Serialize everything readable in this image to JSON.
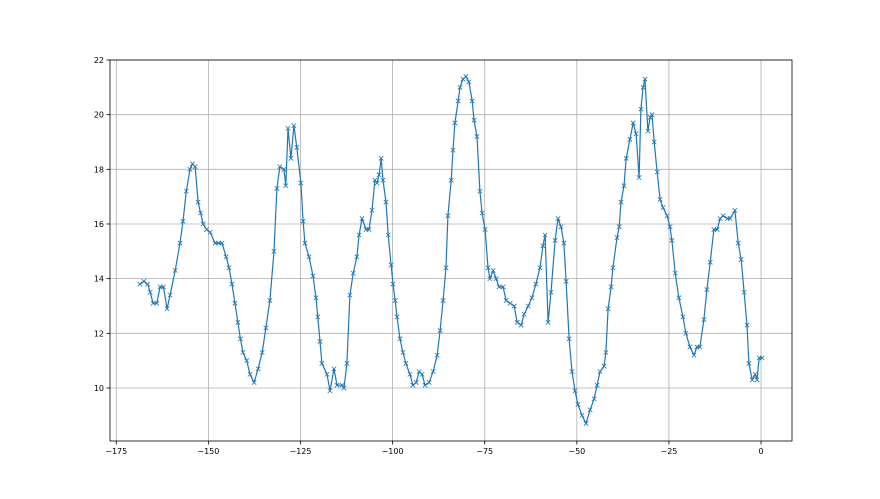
{
  "chart_data": {
    "type": "line",
    "title": "",
    "xlabel": "",
    "ylabel": "",
    "xlim": [
      -176.7,
      8.4
    ],
    "ylim": [
      8.06,
      22
    ],
    "grid": true,
    "marker": "x",
    "line_color": "#1f77b4",
    "grid_color": "#b0b0b0",
    "x_ticks": [
      -175,
      -150,
      -125,
      -100,
      -75,
      -50,
      -25,
      0
    ],
    "x_tick_labels": [
      "−175",
      "−150",
      "−125",
      "−100",
      "−75",
      "−50",
      "−25",
      "0"
    ],
    "y_ticks": [
      10,
      12,
      14,
      16,
      18,
      20,
      22
    ],
    "y_tick_labels": [
      "10",
      "12",
      "14",
      "16",
      "18",
      "20",
      "22"
    ],
    "series": [
      {
        "x": [
          -168.6,
          -167.5,
          -166.5,
          -165.8,
          -165,
          -164,
          -163.1,
          -162.2,
          -161.2,
          -160.4,
          -159,
          -157.7,
          -156.9,
          -156,
          -155,
          -154.3,
          -153.6,
          -152.8,
          -152.1,
          -151.4,
          -150.5,
          -149.5,
          -148.2,
          -147.2,
          -146.3,
          -145.2,
          -144.4,
          -143.6,
          -142.8,
          -142,
          -141.3,
          -140.6,
          -139.6,
          -138.7,
          -137.6,
          -136.5,
          -135.4,
          -134.4,
          -133.3,
          -132.2,
          -131.4,
          -130.6,
          -129.5,
          -129,
          -128.4,
          -127.6,
          -126.8,
          -126,
          -124.9,
          -124.3,
          -123.8,
          -122.7,
          -121.6,
          -120.8,
          -120.3,
          -119.7,
          -119.2,
          -117.8,
          -117,
          -115.9,
          -115.1,
          -113.7,
          -113.2,
          -112.4,
          -111.6,
          -110.7,
          -109.7,
          -109.1,
          -108.3,
          -107.2,
          -106.4,
          -105.6,
          -104.8,
          -104.2,
          -103.7,
          -103.1,
          -102.6,
          -101.8,
          -101.2,
          -100.4,
          -99.9,
          -99.3,
          -98.8,
          -98,
          -97.2,
          -96.4,
          -95.3,
          -94.5,
          -93.6,
          -92.8,
          -92,
          -91.2,
          -90.1,
          -89,
          -87.9,
          -87.1,
          -86.3,
          -85.5,
          -85,
          -84.1,
          -83.6,
          -83.1,
          -82.2,
          -81.7,
          -80.9,
          -80.1,
          -79.3,
          -78.4,
          -77.9,
          -77.1,
          -76.3,
          -75.7,
          -74.9,
          -74.1,
          -73.6,
          -72.7,
          -71.9,
          -71.1,
          -70,
          -69.2,
          -68.1,
          -67,
          -66.2,
          -65.1,
          -64.3,
          -63.2,
          -62.2,
          -61.1,
          -60,
          -59.2,
          -58.6,
          -57.8,
          -57,
          -55.9,
          -55.1,
          -54.3,
          -53.5,
          -52.9,
          -52.1,
          -51.3,
          -50.5,
          -49.7,
          -48.6,
          -47.5,
          -46.4,
          -45.3,
          -44.5,
          -43.7,
          -42.6,
          -42.1,
          -41.5,
          -40.7,
          -40.2,
          -39.1,
          -38.5,
          -38,
          -37.2,
          -36.6,
          -35.6,
          -34.7,
          -33.9,
          -33.1,
          -32.6,
          -32,
          -31.5,
          -30.7,
          -30.1,
          -29.6,
          -29,
          -28.2,
          -27.4,
          -26.6,
          -25.5,
          -24.7,
          -24.2,
          -23.3,
          -22.3,
          -21.2,
          -20.4,
          -19.3,
          -18.2,
          -17.4,
          -16.6,
          -15.5,
          -14.7,
          -13.8,
          -12.8,
          -11.9,
          -11.1,
          -10.3,
          -9.2,
          -8.4,
          -7.1,
          -6.2,
          -5.4,
          -4.6,
          -3.8,
          -3.3,
          -2.4,
          -1.6,
          -1.1,
          -0.5,
          0.3
        ],
        "y": [
          13.8,
          13.9,
          13.8,
          13.5,
          13.1,
          13.1,
          13.7,
          13.7,
          12.9,
          13.4,
          14.3,
          15.3,
          16.1,
          17.2,
          18.0,
          18.2,
          18.1,
          16.8,
          16.4,
          16.0,
          15.8,
          15.7,
          15.3,
          15.3,
          15.3,
          14.8,
          14.4,
          13.8,
          13.1,
          12.4,
          11.8,
          11.3,
          11.0,
          10.5,
          10.2,
          10.7,
          11.3,
          12.2,
          13.2,
          15.0,
          17.3,
          18.1,
          18.0,
          17.4,
          19.5,
          18.4,
          19.6,
          18.8,
          17.5,
          16.1,
          15.3,
          14.8,
          14.1,
          13.3,
          12.6,
          11.7,
          10.9,
          10.5,
          9.9,
          10.7,
          10.1,
          10.1,
          10.0,
          10.9,
          13.4,
          14.2,
          14.8,
          15.6,
          16.2,
          15.8,
          15.8,
          16.5,
          17.6,
          17.5,
          17.8,
          18.4,
          17.6,
          16.8,
          15.6,
          14.5,
          13.8,
          13.2,
          12.6,
          11.8,
          11.3,
          10.9,
          10.5,
          10.1,
          10.2,
          10.6,
          10.5,
          10.1,
          10.2,
          10.6,
          11.2,
          12.1,
          13.2,
          14.4,
          16.3,
          17.6,
          18.7,
          19.7,
          20.5,
          21.0,
          21.3,
          21.4,
          21.2,
          20.5,
          19.8,
          19.2,
          17.2,
          16.4,
          15.8,
          14.4,
          14.0,
          14.3,
          14.0,
          13.7,
          13.7,
          13.2,
          13.1,
          13.0,
          12.4,
          12.3,
          12.7,
          13.0,
          13.3,
          13.8,
          14.4,
          15.2,
          15.6,
          12.4,
          13.5,
          15.4,
          16.2,
          15.9,
          15.3,
          13.9,
          11.8,
          10.6,
          9.9,
          9.4,
          9.0,
          8.7,
          9.2,
          9.6,
          10.1,
          10.6,
          10.8,
          11.3,
          12.9,
          13.7,
          14.4,
          15.5,
          15.9,
          16.8,
          17.4,
          18.4,
          19.1,
          19.7,
          19.3,
          17.7,
          20.2,
          21.0,
          21.3,
          19.4,
          19.9,
          20.0,
          19.0,
          17.9,
          16.9,
          16.6,
          16.3,
          15.9,
          15.4,
          14.2,
          13.3,
          12.6,
          12.0,
          11.5,
          11.2,
          11.5,
          11.5,
          12.5,
          13.6,
          14.6,
          15.8,
          15.8,
          16.2,
          16.3,
          16.2,
          16.2,
          16.5,
          15.3,
          14.7,
          13.5,
          12.3,
          10.9,
          10.3,
          10.5,
          10.3,
          11.1,
          11.1
        ]
      }
    ]
  }
}
